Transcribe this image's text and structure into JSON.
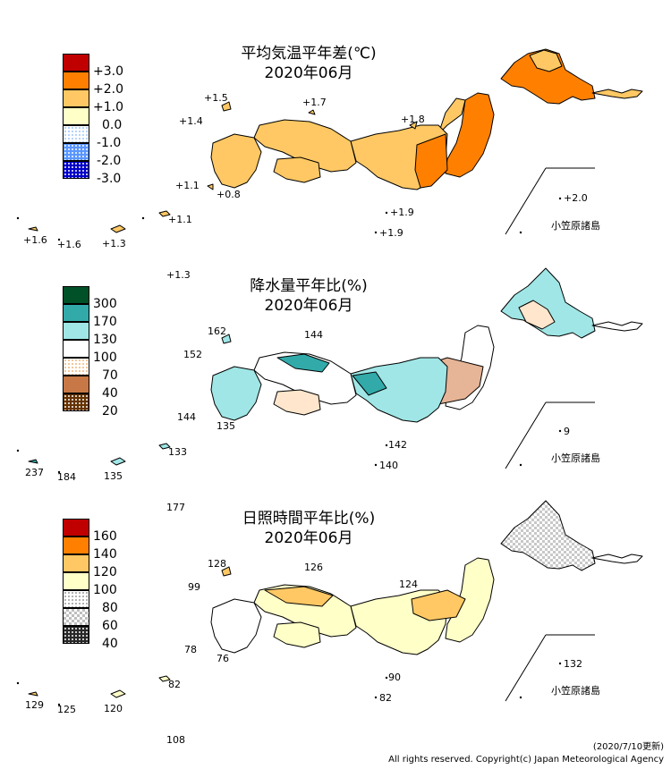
{
  "maps": [
    {
      "title": "平均気温平年差(℃)",
      "period": "2020年06月",
      "legend": [
        {
          "label": "+3.0",
          "color": "#c00000",
          "pattern": "solid"
        },
        {
          "label": "+2.0",
          "color": "#ff8000",
          "pattern": "solid"
        },
        {
          "label": "+1.0",
          "color": "#ffc864",
          "pattern": "solid"
        },
        {
          "label": "0.0",
          "color": "#ffffc8",
          "pattern": "solid"
        },
        {
          "label": "-1.0",
          "color": "#d8ecff",
          "pattern": "dots"
        },
        {
          "label": "-2.0",
          "color": "#5a96ff",
          "pattern": "dots"
        },
        {
          "label": "-3.0",
          "color": "#0000c8",
          "pattern": "dots"
        }
      ],
      "labels": [
        "+1.5",
        "+1.7",
        "+1.4",
        "+1.8",
        "+1.1",
        "+0.8",
        "+1.1",
        "+1.9",
        "+1.6",
        "+1.6",
        "+1.3",
        "+1.9",
        "+1.3",
        "+2.0"
      ],
      "ogasawara_label": "小笠原諸島"
    },
    {
      "title": "降水量平年比(%)",
      "period": "2020年06月",
      "legend": [
        {
          "label": "300",
          "color": "#005028",
          "pattern": "solid"
        },
        {
          "label": "170",
          "color": "#32aaaa",
          "pattern": "solid"
        },
        {
          "label": "130",
          "color": "#a0e6e6",
          "pattern": "solid"
        },
        {
          "label": "100",
          "color": "#ffffff",
          "pattern": "solid"
        },
        {
          "label": "70",
          "color": "#ffd2aa",
          "pattern": "dots"
        },
        {
          "label": "40",
          "color": "#c87846",
          "pattern": "check"
        },
        {
          "label": "20",
          "color": "#643200",
          "pattern": "dots"
        }
      ],
      "labels": [
        "162",
        "144",
        "152",
        "144",
        "135",
        "142",
        "237",
        "184",
        "135",
        "133",
        "140",
        "177",
        "9"
      ],
      "ogasawara_label": "小笠原諸島"
    },
    {
      "title": "日照時間平年比(%)",
      "period": "2020年06月",
      "legend": [
        {
          "label": "160",
          "color": "#c00000",
          "pattern": "solid"
        },
        {
          "label": "140",
          "color": "#ff8000",
          "pattern": "solid"
        },
        {
          "label": "120",
          "color": "#ffc864",
          "pattern": "solid"
        },
        {
          "label": "100",
          "color": "#ffffc8",
          "pattern": "solid"
        },
        {
          "label": "80",
          "color": "#ffffff",
          "pattern": "dots"
        },
        {
          "label": "60",
          "color": "#bebebe",
          "pattern": "check"
        },
        {
          "label": "40",
          "color": "#282828",
          "pattern": "dots"
        }
      ],
      "labels": [
        "128",
        "126",
        "99",
        "124",
        "78",
        "76",
        "90",
        "129",
        "125",
        "120",
        "82",
        "82",
        "108",
        "132"
      ],
      "ogasawara_label": "小笠原諸島"
    }
  ],
  "footer": {
    "date": "(2020/7/10更新)",
    "copyright": "All rights reserved. Copyright(c) Japan Meteorological Agency"
  }
}
